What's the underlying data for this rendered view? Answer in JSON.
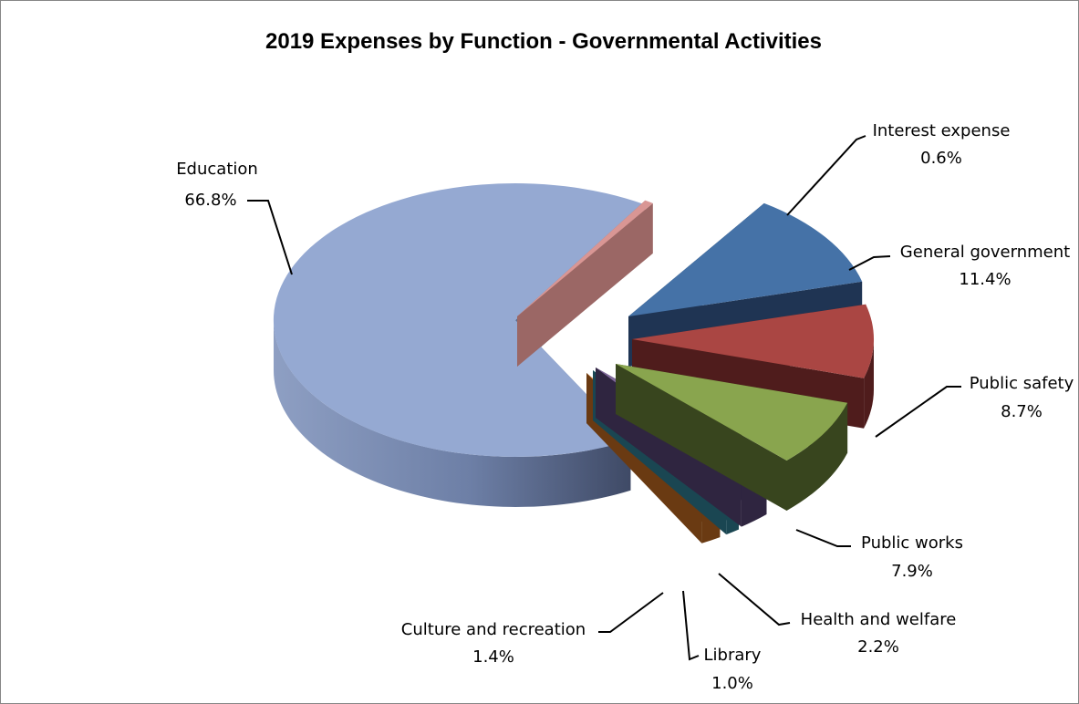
{
  "chart_data": {
    "type": "pie",
    "title": "2019 Expenses by Function - Governmental Activities",
    "unit": "%",
    "slices": [
      {
        "name": "Interest expense",
        "value": 0.6,
        "label": "0.6%",
        "color": "#D99694",
        "side": "#9B6765"
      },
      {
        "name": "General government",
        "value": 11.4,
        "label": "11.4%",
        "color": "#4572A7",
        "side": "#1F3453"
      },
      {
        "name": "Public safety",
        "value": 8.7,
        "label": "8.7%",
        "color": "#AA4643",
        "side": "#4F1C1C"
      },
      {
        "name": "Public works",
        "value": 7.9,
        "label": "7.9%",
        "color": "#89A54E",
        "side": "#38451E"
      },
      {
        "name": "Health and welfare",
        "value": 2.2,
        "label": "2.2%",
        "color": "#80699B",
        "side": "#2F2540"
      },
      {
        "name": "Library",
        "value": 1.0,
        "label": "1.0%",
        "color": "#3D96AE",
        "side": "#1A4652"
      },
      {
        "name": "Culture and recreation",
        "value": 1.4,
        "label": "1.4%",
        "color": "#DB843D",
        "side": "#6A3A12"
      },
      {
        "name": "Education",
        "value": 66.8,
        "label": "66.8%",
        "color": "#95A9D2",
        "side": "#5E6E8E"
      }
    ],
    "legend": "none"
  }
}
